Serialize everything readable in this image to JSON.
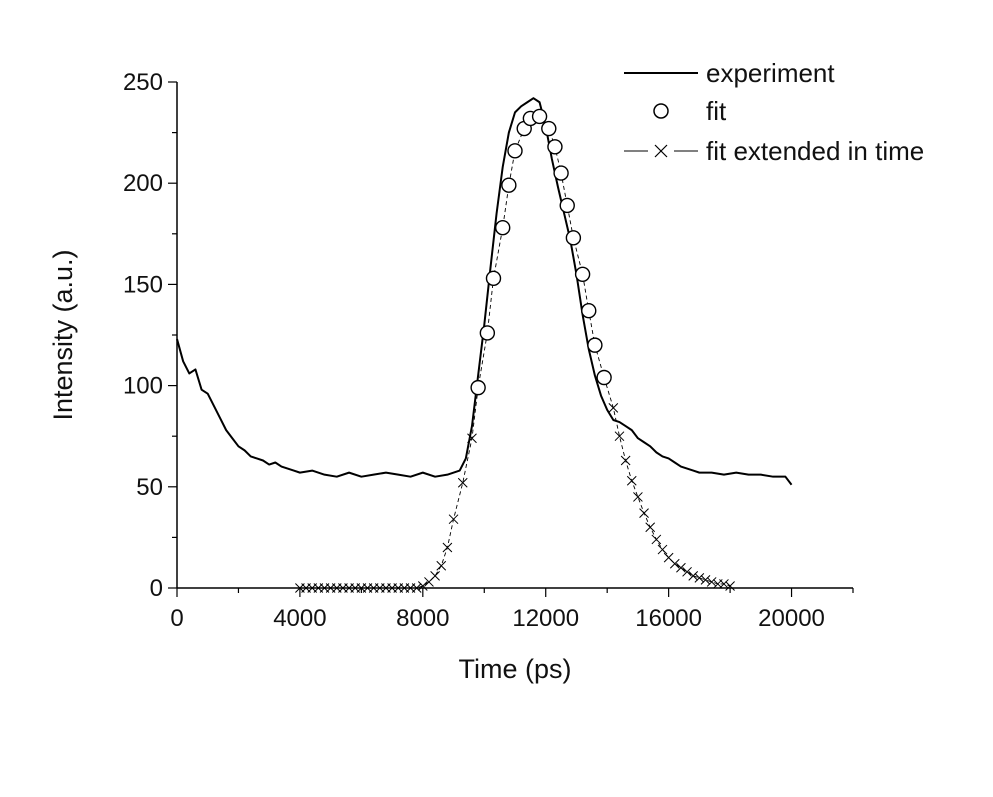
{
  "chart_data": {
    "type": "line",
    "xlabel": "Time (ps)",
    "ylabel": "Intensity (a.u.)",
    "xlim": [
      0,
      22000
    ],
    "ylim": [
      0,
      250
    ],
    "xticks": [
      0,
      4000,
      8000,
      12000,
      16000,
      20000
    ],
    "yticks": [
      0,
      50,
      100,
      150,
      200,
      250
    ],
    "grid": false,
    "legend_position": "top-right",
    "series": [
      {
        "name": "experiment",
        "style": "solid line",
        "color": "#000000",
        "x": [
          0,
          200,
          400,
          600,
          800,
          1000,
          1200,
          1400,
          1600,
          1800,
          2000,
          2200,
          2400,
          2600,
          2800,
          3000,
          3200,
          3400,
          3600,
          3800,
          4000,
          4400,
          4800,
          5200,
          5600,
          6000,
          6400,
          6800,
          7200,
          7600,
          8000,
          8400,
          8800,
          9200,
          9400,
          9600,
          9800,
          10000,
          10200,
          10400,
          10600,
          10800,
          11000,
          11200,
          11400,
          11600,
          11800,
          12000,
          12200,
          12400,
          12600,
          12800,
          13000,
          13200,
          13400,
          13600,
          13800,
          14000,
          14200,
          14400,
          14600,
          14800,
          15000,
          15200,
          15400,
          15600,
          15800,
          16000,
          16200,
          16400,
          16600,
          16800,
          17000,
          17400,
          17800,
          18200,
          18600,
          19000,
          19400,
          19800,
          20000
        ],
        "y": [
          123,
          112,
          106,
          108,
          98,
          96,
          90,
          84,
          78,
          74,
          70,
          68,
          65,
          64,
          63,
          61,
          62,
          60,
          59,
          58,
          57,
          58,
          56,
          55,
          57,
          55,
          56,
          57,
          56,
          55,
          57,
          55,
          56,
          58,
          64,
          80,
          105,
          130,
          158,
          185,
          208,
          225,
          235,
          238,
          240,
          242,
          240,
          228,
          212,
          198,
          185,
          172,
          155,
          135,
          118,
          105,
          95,
          88,
          83,
          82,
          80,
          78,
          74,
          72,
          70,
          67,
          65,
          64,
          62,
          60,
          59,
          58,
          57,
          57,
          56,
          57,
          56,
          56,
          55,
          55,
          51
        ]
      },
      {
        "name": "fit",
        "style": "open circles",
        "color": "#000000",
        "x": [
          9800,
          10100,
          10300,
          10600,
          10800,
          11000,
          11300,
          11500,
          11800,
          12100,
          12300,
          12500,
          12700,
          12900,
          13200,
          13400,
          13600,
          13900
        ],
        "y": [
          99,
          126,
          153,
          178,
          199,
          216,
          227,
          232,
          233,
          227,
          218,
          205,
          189,
          173,
          155,
          137,
          120,
          104
        ]
      },
      {
        "name": "fit extended in time",
        "style": "dashed line with x markers",
        "color": "#000000",
        "x": [
          4000,
          4200,
          4400,
          4600,
          4800,
          5000,
          5200,
          5400,
          5600,
          5800,
          6000,
          6200,
          6400,
          6600,
          6800,
          7000,
          7200,
          7400,
          7600,
          7800,
          8000,
          8200,
          8400,
          8600,
          8800,
          9000,
          9300,
          9600,
          9800,
          10100,
          10300,
          10600,
          10800,
          11000,
          11300,
          11500,
          11800,
          12100,
          12300,
          12500,
          12700,
          12900,
          13200,
          13400,
          13600,
          13900,
          14200,
          14400,
          14600,
          14800,
          15000,
          15200,
          15400,
          15600,
          15800,
          16000,
          16200,
          16400,
          16600,
          16800,
          17000,
          17200,
          17400,
          17600,
          17800,
          18000
        ],
        "y": [
          0,
          0,
          0,
          0,
          0,
          0,
          0,
          0,
          0,
          0,
          0,
          0,
          0,
          0,
          0,
          0,
          0,
          0,
          0,
          0,
          1,
          3,
          6,
          11,
          20,
          34,
          52,
          74,
          99,
          126,
          153,
          178,
          199,
          216,
          227,
          232,
          233,
          227,
          218,
          205,
          189,
          173,
          155,
          137,
          120,
          104,
          89,
          75,
          63,
          53,
          45,
          37,
          30,
          24,
          19,
          15,
          12,
          10,
          8,
          6,
          5,
          4,
          3,
          2,
          2,
          1
        ]
      }
    ]
  }
}
